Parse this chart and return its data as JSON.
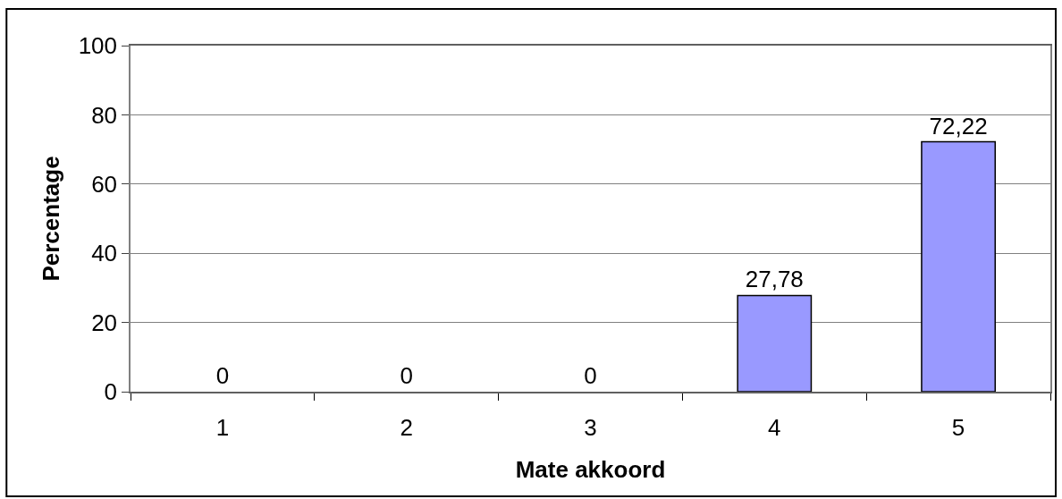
{
  "chart_data": {
    "type": "bar",
    "categories": [
      "1",
      "2",
      "3",
      "4",
      "5"
    ],
    "values": [
      0,
      0,
      0,
      27.78,
      72.22
    ],
    "value_labels": [
      "0",
      "0",
      "0",
      "27,78",
      "72,22"
    ],
    "color": "#9999ff",
    "xlabel": "Mate akkoord",
    "ylabel": "Percentage",
    "ylim": [
      0,
      100
    ],
    "yticks": [
      0,
      20,
      40,
      60,
      80,
      100
    ],
    "grid": "y"
  }
}
